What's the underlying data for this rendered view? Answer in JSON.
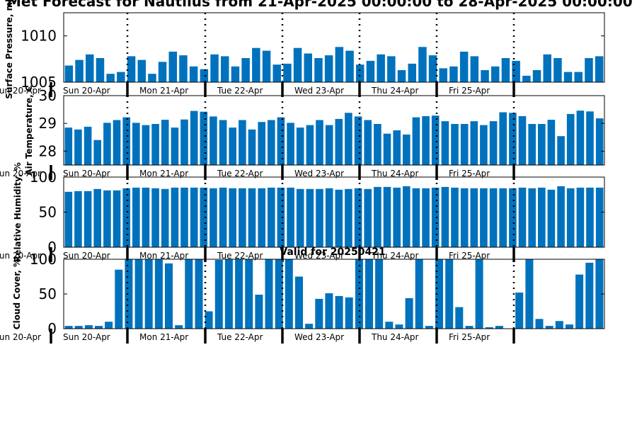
{
  "figure": {
    "title": "Met Forecast for Nautilus from 21-Apr-2025 00:00:00 to 28-Apr-2025 00:00:00",
    "bar_color": "#0072BD",
    "day_labels": [
      "Sun 20-Apr",
      "Mon 21-Apr",
      "Tue 22-Apr",
      "Wed 23-Apr",
      "Thu 24-Apr",
      "Fri 25-Apr"
    ],
    "edge_label": "Sun 20-Apr",
    "valid_label": "Valid for 20250421"
  },
  "chart_data": [
    {
      "type": "bar",
      "ylabel": "Surface Pressure, mb",
      "ylim": [
        1005,
        1012.5
      ],
      "yticks": [
        1005,
        1010
      ],
      "values": [
        1006.8,
        1007.4,
        1008.0,
        1007.6,
        1005.9,
        1006.1,
        1007.8,
        1007.4,
        1005.9,
        1007.2,
        1008.3,
        1007.9,
        1006.7,
        1006.4,
        1008.0,
        1007.8,
        1006.7,
        1007.6,
        1008.7,
        1008.4,
        1006.9,
        1007.0,
        1008.7,
        1008.1,
        1007.6,
        1007.9,
        1008.8,
        1008.4,
        1006.9,
        1007.3,
        1008.0,
        1007.8,
        1006.3,
        1007.0,
        1008.8,
        1007.9,
        1006.5,
        1006.7,
        1008.3,
        1007.8,
        1006.3,
        1006.7,
        1007.6,
        1007.3,
        1005.7,
        1006.3,
        1008.0,
        1007.6,
        1006.1,
        1006.1,
        1007.6,
        1007.8
      ]
    },
    {
      "type": "bar",
      "ylabel": "Air Temperature, C",
      "ylim": [
        27.5,
        30
      ],
      "yticks": [
        28,
        29,
        30
      ],
      "values": [
        28.85,
        28.78,
        28.88,
        28.4,
        29.02,
        29.12,
        29.22,
        29.02,
        28.94,
        28.98,
        29.13,
        28.85,
        29.14,
        29.45,
        29.42,
        29.25,
        29.12,
        28.85,
        29.12,
        28.78,
        29.05,
        29.12,
        29.22,
        29.02,
        28.85,
        28.94,
        29.12,
        28.94,
        29.16,
        29.38,
        29.25,
        29.12,
        28.98,
        28.63,
        28.75,
        28.6,
        29.22,
        29.26,
        29.28,
        29.08,
        28.98,
        28.98,
        29.08,
        28.94,
        29.08,
        29.4,
        29.38,
        29.26,
        28.98,
        28.98,
        29.13,
        28.54,
        29.34,
        29.46,
        29.43,
        29.18
      ]
    },
    {
      "type": "bar",
      "ylabel": "Relative Humidity, %",
      "ylim": [
        0,
        100
      ],
      "yticks": [
        0,
        50,
        100
      ],
      "values": [
        79,
        80,
        80,
        83,
        81,
        81,
        84,
        85,
        85,
        84,
        83,
        85,
        85,
        85,
        85,
        84,
        85,
        84,
        84,
        84,
        84,
        85,
        85,
        85,
        83,
        83,
        83,
        84,
        82,
        83,
        84,
        83,
        86,
        86,
        85,
        87,
        84,
        84,
        85,
        86,
        85,
        84,
        84,
        84,
        84,
        84,
        84,
        85,
        84,
        85,
        82,
        87,
        84,
        85,
        85,
        85
      ]
    },
    {
      "type": "bar",
      "ylabel": "Cloud Cover, %",
      "ylim": [
        0,
        100
      ],
      "yticks": [
        0,
        50,
        100
      ],
      "values": [
        4,
        4,
        5,
        4,
        10,
        85,
        100,
        100,
        100,
        100,
        94,
        5,
        100,
        100,
        25,
        99,
        100,
        100,
        100,
        49,
        100,
        100,
        100,
        75,
        7,
        43,
        51,
        47,
        45,
        100,
        100,
        100,
        10,
        6,
        44,
        100,
        4,
        100,
        100,
        31,
        4,
        100,
        2,
        4,
        0,
        52,
        100,
        14,
        4,
        11,
        6,
        78,
        95,
        100
      ]
    }
  ]
}
